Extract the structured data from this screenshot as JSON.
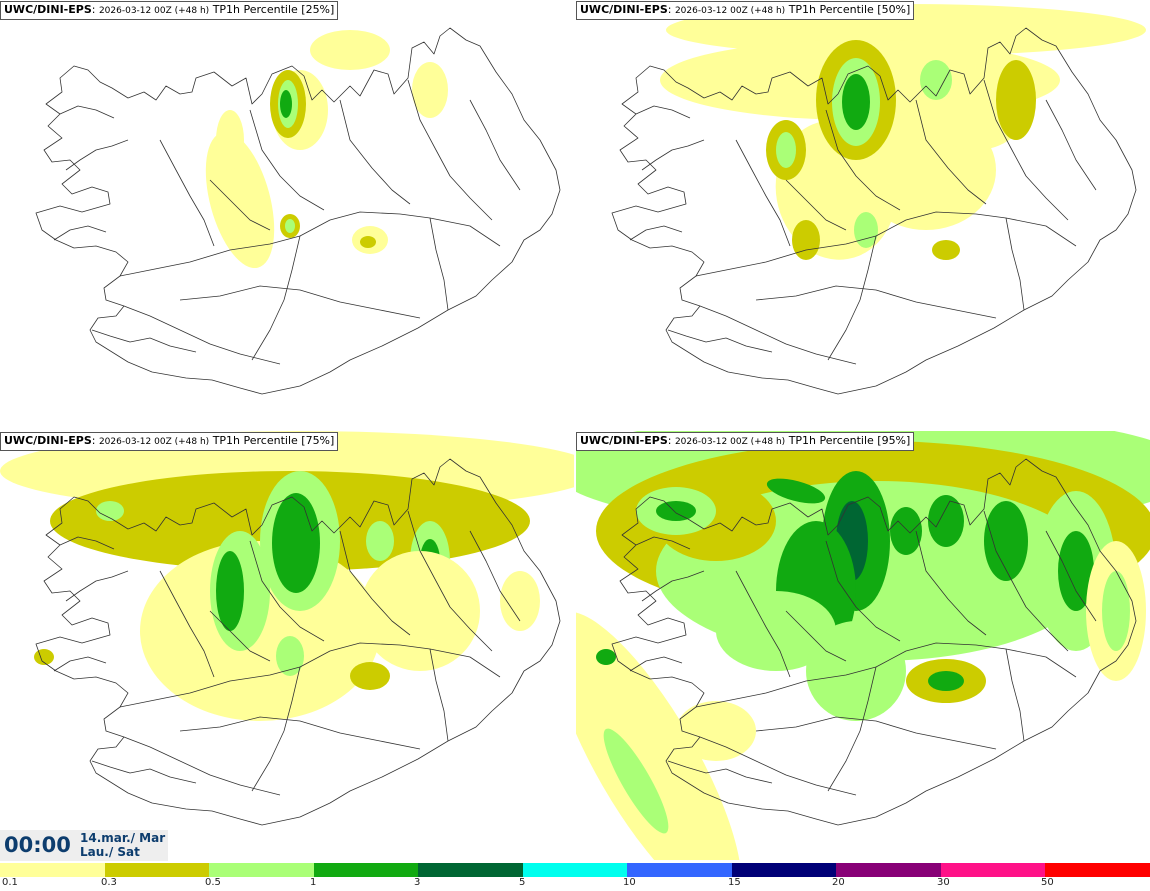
{
  "panels": [
    {
      "model": "UWC/DINI-EPS",
      "run": "2026-03-12 00Z (+48 h)",
      "param": "TP1h Percentile [25%]"
    },
    {
      "model": "UWC/DINI-EPS",
      "run": "2026-03-12 00Z (+48 h)",
      "param": "TP1h Percentile [50%]"
    },
    {
      "model": "UWC/DINI-EPS",
      "run": "2026-03-12 00Z (+48 h)",
      "param": "TP1h Percentile [75%]"
    },
    {
      "model": "UWC/DINI-EPS",
      "run": "2026-03-12 00Z (+48 h)",
      "param": "TP1h Percentile [95%]"
    }
  ],
  "valid_time": {
    "time": "00:00",
    "date": "14.mar./ Mar",
    "day": "Lau./ Sat"
  },
  "colorbar": {
    "colors": [
      "#ffff99",
      "#cccc00",
      "#aaff77",
      "#11aa11",
      "#006633",
      "#00ffee",
      "#3366ff",
      "#000077",
      "#880077",
      "#ff1188",
      "#ff0000"
    ],
    "ticks": [
      "0.1",
      "0.3",
      "0.5",
      "1",
      "3",
      "5",
      "10",
      "15",
      "20",
      "30",
      "50"
    ]
  },
  "palette": {
    "light_yellow": "#ffff99",
    "olive": "#cccc00",
    "light_green": "#aaff77",
    "green": "#11aa11",
    "dark_green": "#006633",
    "coast": "#333333"
  }
}
